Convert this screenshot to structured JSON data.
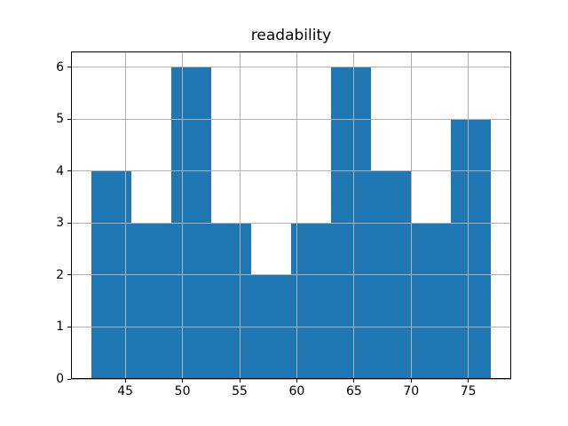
{
  "title": "readability",
  "chart_data": {
    "type": "bar",
    "subtype": "histogram",
    "title": "readability",
    "xlabel": "",
    "ylabel": "",
    "bin_edges": [
      42,
      45.5,
      49,
      52.5,
      56,
      59.5,
      63,
      66.5,
      70,
      73.5,
      77
    ],
    "counts": [
      4,
      3,
      6,
      3,
      2,
      3,
      6,
      4,
      3,
      5
    ],
    "xticks": [
      45,
      50,
      55,
      60,
      65,
      70,
      75
    ],
    "yticks": [
      0,
      1,
      2,
      3,
      4,
      5,
      6
    ],
    "xlim": [
      40.25,
      78.75
    ],
    "ylim": [
      0,
      6.3
    ],
    "grid": true,
    "legend": false,
    "bar_color": "#1f77b4",
    "grid_color": "#b0b0b0",
    "spine_color": "#000000",
    "background_color": "#ffffff"
  }
}
